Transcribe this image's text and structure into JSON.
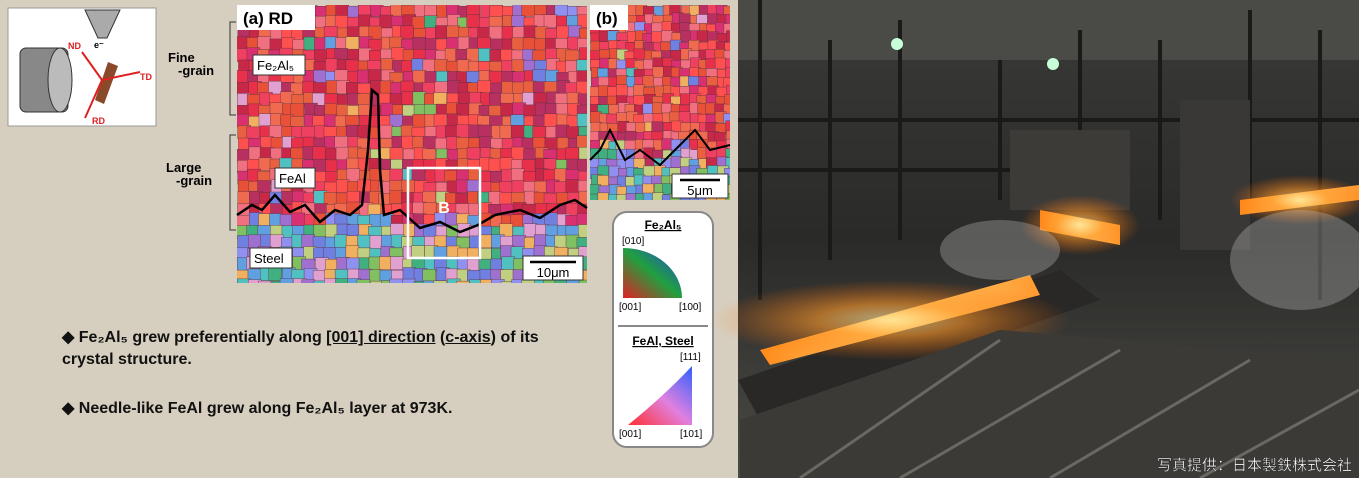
{
  "schematic": {
    "nd": "ND",
    "beam": "e⁻",
    "td": "TD",
    "rd": "RD"
  },
  "side_labels": {
    "fine": [
      "Fine",
      "-grain"
    ],
    "large": [
      "Large",
      "-grain"
    ]
  },
  "map_a": {
    "title": "(a) RD",
    "fe2al5": "Fe₂Al₅",
    "feal": "FeAl",
    "steel": "Steel",
    "box": "B",
    "scale": "10μm"
  },
  "map_b": {
    "title": "(b)",
    "scale": "5μm"
  },
  "legend": {
    "top": {
      "title": "Fe₂Al₅",
      "y": "[010]",
      "origin": "[001]",
      "x": "[100]"
    },
    "bottom": {
      "title": "FeAl, Steel",
      "top": "[111]",
      "origin": "[001]",
      "right": "[101]"
    }
  },
  "bullets": [
    {
      "marker": "◆",
      "parts": [
        "Fe₂Al₅ grew preferentially along ",
        "[001] direction",
        " (",
        "c-axis",
        ") of its crystal structure."
      ]
    },
    {
      "marker": "◆",
      "parts": [
        "Needle-like FeAl grew along Fe₂Al₅ layer at 973K."
      ]
    }
  ],
  "photo": {
    "credit": "写真提供：日本製鉄株式会社"
  }
}
